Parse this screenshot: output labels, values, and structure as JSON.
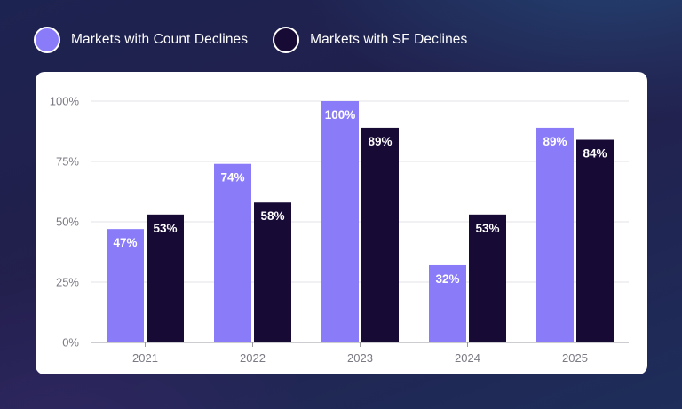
{
  "legend": {
    "series_a_label": "Markets with Count Declines",
    "series_b_label": "Markets with SF Declines"
  },
  "colors": {
    "series_a": "#8a7cf8",
    "series_b": "#170a35",
    "grid": "#e3e3e8",
    "axis": "#9a9aa3"
  },
  "chart_data": {
    "type": "bar",
    "categories": [
      "2021",
      "2022",
      "2023",
      "2024",
      "2025"
    ],
    "series": [
      {
        "name": "Markets with Count Declines",
        "values": [
          47,
          74,
          100,
          32,
          89
        ],
        "labels": [
          "47%",
          "74%",
          "100%",
          "32%",
          "89%"
        ]
      },
      {
        "name": "Markets with SF Declines",
        "values": [
          53,
          58,
          89,
          53,
          84
        ],
        "labels": [
          "53%",
          "58%",
          "89%",
          "53%",
          "84%"
        ]
      }
    ],
    "yticks": [
      0,
      25,
      50,
      75,
      100
    ],
    "ytick_labels": [
      "0%",
      "25%",
      "50%",
      "75%",
      "100%"
    ],
    "ylim": [
      0,
      100
    ],
    "title": "",
    "xlabel": "",
    "ylabel": "",
    "grid": true,
    "legend_position": "top-left"
  }
}
